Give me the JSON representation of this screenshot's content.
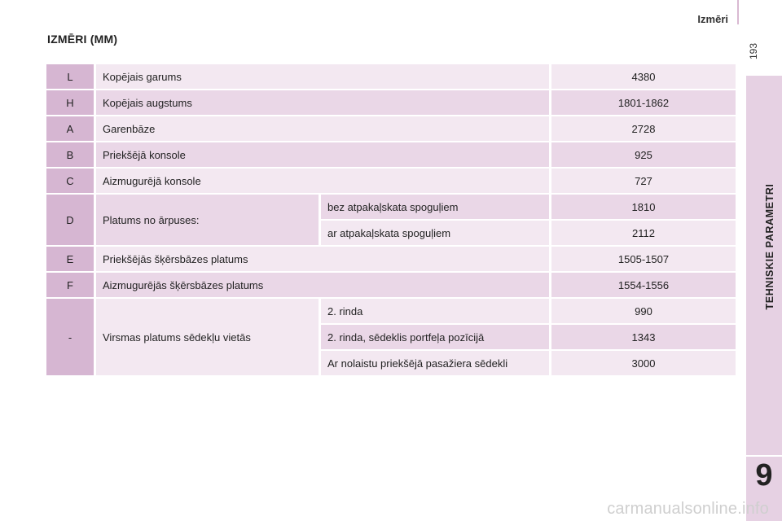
{
  "header": {
    "title": "Izmēri"
  },
  "page_number": "193",
  "section_title": "IZMĒRI (MM)",
  "side_tab": {
    "label": "TEHNISKIE PARAMETRI",
    "chapter": "9"
  },
  "watermark": "carmanualsonline.info",
  "rows": [
    {
      "code": "L",
      "label": "Kopējais garums",
      "value": "4380"
    },
    {
      "code": "H",
      "label": "Kopējais augstums",
      "value": "1801-1862"
    },
    {
      "code": "A",
      "label": "Garenbāze",
      "value": "2728"
    },
    {
      "code": "B",
      "label": "Priekšējā konsole",
      "value": "925"
    },
    {
      "code": "C",
      "label": "Aizmugurējā konsole",
      "value": "727"
    },
    {
      "code": "D",
      "label": "Platums no ārpuses:",
      "sub": [
        {
          "label": "bez atpakaļskata spoguļiem",
          "value": "1810"
        },
        {
          "label": "ar atpakaļskata spoguļiem",
          "value": "2112"
        }
      ]
    },
    {
      "code": "E",
      "label": "Priekšējās šķērsbāzes platums",
      "value": "1505-1507"
    },
    {
      "code": "F",
      "label": "Aizmugurējās šķērsbāzes platums",
      "value": "1554-1556"
    },
    {
      "code": "-",
      "label": "Virsmas platums sēdekļu vietās",
      "sub": [
        {
          "label": "2. rinda",
          "value": "990"
        },
        {
          "label": "2. rinda, sēdeklis portfeļa pozīcijā",
          "value": "1343"
        },
        {
          "label": "Ar nolaistu priekšējā pasažiera sēdekli",
          "value": "3000"
        }
      ]
    }
  ]
}
